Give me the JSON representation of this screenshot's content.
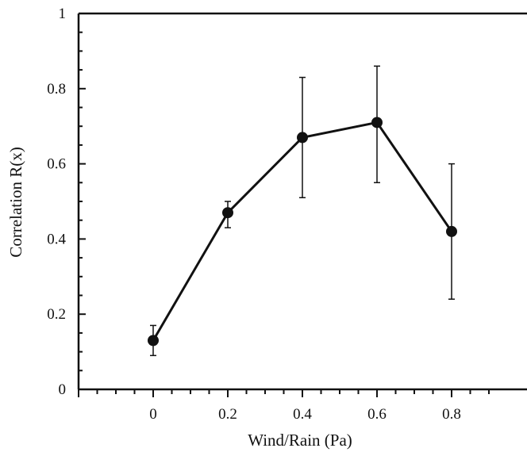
{
  "chart_data": {
    "type": "line",
    "title": "",
    "xlabel": "Wind/Rain (Pa)",
    "ylabel": "Correlation R(x)",
    "xlim": [
      -0.2,
      1.0
    ],
    "ylim": [
      0,
      1
    ],
    "x_ticks": [
      0,
      0.2,
      0.4,
      0.6,
      0.8
    ],
    "x_tick_labels": [
      "0",
      "0.2",
      "0.4",
      "0.6",
      "0.8"
    ],
    "y_ticks": [
      0,
      0.2,
      0.4,
      0.6,
      0.8,
      1
    ],
    "y_tick_labels": [
      "0",
      "0.2",
      "0.4",
      "0.6",
      "0.8",
      "1"
    ],
    "grid": false,
    "series": [
      {
        "marker": "filled-circle",
        "color": "#111111",
        "points": [
          {
            "x": 0.0,
            "y": 0.13,
            "err_low": 0.09,
            "err_high": 0.17
          },
          {
            "x": 0.2,
            "y": 0.47,
            "err_low": 0.43,
            "err_high": 0.5
          },
          {
            "x": 0.4,
            "y": 0.67,
            "err_low": 0.51,
            "err_high": 0.83
          },
          {
            "x": 0.6,
            "y": 0.71,
            "err_low": 0.55,
            "err_high": 0.86
          },
          {
            "x": 0.8,
            "y": 0.42,
            "err_low": 0.24,
            "err_high": 0.6
          }
        ]
      }
    ]
  }
}
